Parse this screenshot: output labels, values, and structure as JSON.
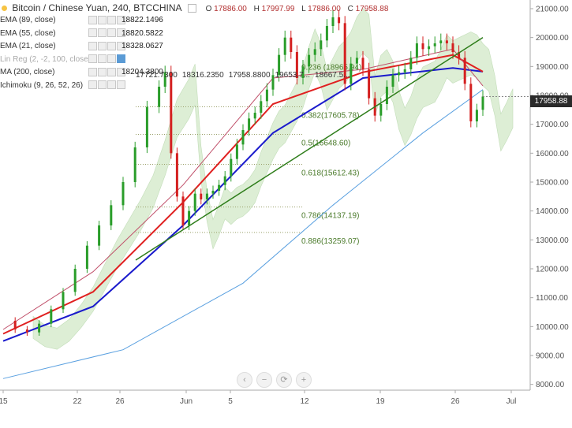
{
  "header": {
    "symbol_title": "Bitcoin / Chinese Yuan, 240, BTCCHINA",
    "ohlc": {
      "o_label": "O",
      "o": "17886.00",
      "h_label": "H",
      "h": "17997.99",
      "l_label": "L",
      "l": "17886.00",
      "c_label": "C",
      "c": "17958.88"
    }
  },
  "indicators": [
    {
      "name": "EMA (89, close)",
      "value": "18822.1496",
      "color": "#1a1acc"
    },
    {
      "name": "EMA (55, close)",
      "value": "18820.5822",
      "color": "#e02020"
    },
    {
      "name": "EMA (21, close)",
      "value": "18328.0627",
      "color": "#d07070"
    },
    {
      "name": "Lin Reg (2, -2, 100, close)",
      "value": "",
      "color": "#aaaaaa"
    },
    {
      "name": "MA (200, close)",
      "value": "18204.3800",
      "color": "#4a90d9"
    },
    {
      "name": "Ichimoku (9, 26, 52, 26)",
      "value": "",
      "color": "#3a3a3a"
    }
  ],
  "ichimoku_values": [
    "17721.7300",
    "18316.2350",
    "17958.8800",
    "19653.7...",
    "18667.5..."
  ],
  "last_price_tag": "17958.88",
  "colors": {
    "ema89": "#1a1acc",
    "ema55": "#e02020",
    "ema21": "#c0506a",
    "ma200": "#5aa0e0",
    "trend": "#2e7d1a",
    "cloud_green": "#cfe8c4",
    "cloud_red": "#f8d4d4",
    "candle_up": "#2a9d2a",
    "candle_down": "#d42020"
  },
  "chart_data": {
    "type": "candlestick",
    "xlabels": [
      "15",
      "22",
      "26",
      "Jun",
      "5",
      "12",
      "19",
      "26",
      "Jul"
    ],
    "ylim": [
      7800,
      21300
    ],
    "yticks": [
      "21000.00",
      "20000.00",
      "19000.00",
      "18000.00",
      "17000.00",
      "16000.00",
      "15000.00",
      "14000.00",
      "13000.00",
      "12000.00",
      "11000.00",
      "10000.00",
      "9000.00",
      "8000.00"
    ],
    "close_path": [
      [
        0,
        10200
      ],
      [
        4,
        9900
      ],
      [
        8,
        9800
      ],
      [
        12,
        10100
      ],
      [
        16,
        10600
      ],
      [
        20,
        11200
      ],
      [
        24,
        12000
      ],
      [
        28,
        12800
      ],
      [
        32,
        13500
      ],
      [
        36,
        14200
      ],
      [
        40,
        15000
      ],
      [
        44,
        16200
      ],
      [
        48,
        17600
      ],
      [
        52,
        18300
      ],
      [
        54,
        18800
      ],
      [
        56,
        16000
      ],
      [
        58,
        14500
      ],
      [
        60,
        13500
      ],
      [
        62,
        14000
      ],
      [
        64,
        14600
      ],
      [
        66,
        14400
      ],
      [
        68,
        14600
      ],
      [
        70,
        14700
      ],
      [
        72,
        14900
      ],
      [
        74,
        15200
      ],
      [
        76,
        15800
      ],
      [
        78,
        16300
      ],
      [
        80,
        16800
      ],
      [
        82,
        17200
      ],
      [
        84,
        17400
      ],
      [
        86,
        17800
      ],
      [
        88,
        18200
      ],
      [
        90,
        18700
      ],
      [
        92,
        19400
      ],
      [
        94,
        20000
      ],
      [
        96,
        19500
      ],
      [
        98,
        18600
      ],
      [
        100,
        19000
      ],
      [
        102,
        19400
      ],
      [
        104,
        19600
      ],
      [
        106,
        19900
      ],
      [
        108,
        20400
      ],
      [
        110,
        20700
      ],
      [
        112,
        20500
      ],
      [
        114,
        18400
      ],
      [
        116,
        19100
      ],
      [
        118,
        19300
      ],
      [
        120,
        18900
      ],
      [
        122,
        17900
      ],
      [
        124,
        17300
      ],
      [
        126,
        17700
      ],
      [
        128,
        18300
      ],
      [
        130,
        18700
      ],
      [
        132,
        18800
      ],
      [
        134,
        18900
      ],
      [
        136,
        19300
      ],
      [
        138,
        19800
      ],
      [
        140,
        19600
      ],
      [
        142,
        19700
      ],
      [
        144,
        19800
      ],
      [
        146,
        19900
      ],
      [
        148,
        19800
      ],
      [
        150,
        19500
      ],
      [
        152,
        19300
      ],
      [
        154,
        18400
      ],
      [
        156,
        17100
      ],
      [
        158,
        17500
      ],
      [
        160,
        17960
      ]
    ],
    "ema89": [
      [
        0,
        9500
      ],
      [
        30,
        10700
      ],
      [
        60,
        13500
      ],
      [
        90,
        16700
      ],
      [
        120,
        18600
      ],
      [
        150,
        18950
      ],
      [
        160,
        18820
      ]
    ],
    "ema55": [
      [
        0,
        9750
      ],
      [
        30,
        11200
      ],
      [
        60,
        14300
      ],
      [
        90,
        17700
      ],
      [
        120,
        18800
      ],
      [
        150,
        19400
      ],
      [
        160,
        18820
      ]
    ],
    "ema21": [
      [
        0,
        9900
      ],
      [
        30,
        11900
      ],
      [
        60,
        14900
      ],
      [
        90,
        18600
      ],
      [
        120,
        18900
      ],
      [
        150,
        19600
      ],
      [
        160,
        18330
      ]
    ],
    "ma200": [
      [
        0,
        8200
      ],
      [
        40,
        9200
      ],
      [
        80,
        11500
      ],
      [
        110,
        14200
      ],
      [
        140,
        16700
      ],
      [
        160,
        18200
      ]
    ],
    "fib_levels": [
      {
        "ratio": "0.382",
        "value": "17605.78"
      },
      {
        "ratio": "0.5",
        "value": "16648.60"
      },
      {
        "ratio": "0.618",
        "value": "15612.43"
      },
      {
        "ratio": "0.786",
        "value": "14137.19"
      },
      {
        "ratio": "0.886",
        "value": "13259.07"
      }
    ],
    "fib_top_label": "0.236 (18965.94)",
    "trendline": [
      [
        26.6,
        12300
      ],
      [
        30,
        20000
      ]
    ]
  }
}
